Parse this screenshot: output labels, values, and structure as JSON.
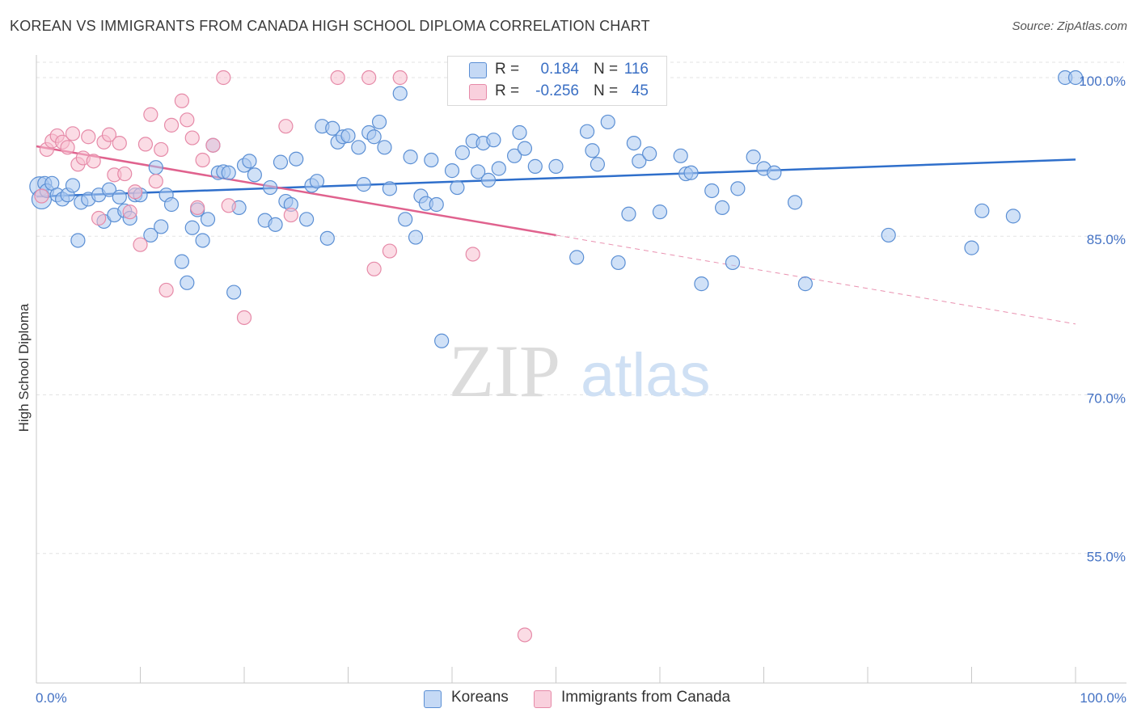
{
  "title": "KOREAN VS IMMIGRANTS FROM CANADA HIGH SCHOOL DIPLOMA CORRELATION CHART",
  "source": "Source: ZipAtlas.com",
  "watermark": {
    "zip": "ZIP",
    "atlas": "atlas"
  },
  "colors": {
    "blue_fill": "#aac8f0",
    "blue_stroke": "#5b8fd4",
    "blue_line": "#2f6fcb",
    "pink_fill": "#f7bfd0",
    "pink_stroke": "#e68aa8",
    "pink_line": "#e0628e",
    "grid": "#e3e3e3",
    "tick_text": "#4472c4"
  },
  "legend": {
    "rows": [
      {
        "r_label": "R =",
        "r_value": "0.184",
        "n_label": "N =",
        "n_value": "116"
      },
      {
        "r_label": "R =",
        "r_value": "-0.256",
        "n_label": "N =",
        "n_value": "45"
      }
    ]
  },
  "bottom_legend": {
    "koreans": "Koreans",
    "canada": "Immigrants from Canada"
  },
  "chart_data": {
    "type": "scatter",
    "ylabel": "High School Diploma",
    "xlim": [
      0,
      100
    ],
    "ylim": [
      0.4275,
      1.0275
    ],
    "x_tick_labels": [
      "0.0%",
      "100.0%"
    ],
    "y_ticks": [
      {
        "value": 1.0,
        "label": "100.0%"
      },
      {
        "value": 0.85,
        "label": "85.0%"
      },
      {
        "value": 0.7,
        "label": "70.0%"
      },
      {
        "value": 0.55,
        "label": "55.0%"
      }
    ],
    "series": [
      {
        "name": "Koreans",
        "trend": {
          "x0": 0,
          "y0": 0.8875,
          "x1": 100,
          "y1": 0.9225,
          "dashed_from": null
        },
        "points": [
          [
            0.3,
            0.897
          ],
          [
            0.5,
            0.885
          ],
          [
            0.8,
            0.9
          ],
          [
            1.0,
            0.893
          ],
          [
            1.5,
            0.9
          ],
          [
            2,
            0.889
          ],
          [
            2.5,
            0.885
          ],
          [
            3,
            0.889
          ],
          [
            3.5,
            0.898
          ],
          [
            4,
            0.846
          ],
          [
            4.3,
            0.882
          ],
          [
            5,
            0.885
          ],
          [
            6,
            0.889
          ],
          [
            6.5,
            0.864
          ],
          [
            7,
            0.894
          ],
          [
            7.5,
            0.87
          ],
          [
            8,
            0.887
          ],
          [
            8.5,
            0.874
          ],
          [
            9,
            0.867
          ],
          [
            9.5,
            0.889
          ],
          [
            10,
            0.889
          ],
          [
            11,
            0.851
          ],
          [
            11.5,
            0.915
          ],
          [
            12,
            0.859
          ],
          [
            12.5,
            0.889
          ],
          [
            13,
            0.88
          ],
          [
            14,
            0.826
          ],
          [
            14.5,
            0.806
          ],
          [
            15,
            0.858
          ],
          [
            15.5,
            0.875
          ],
          [
            16,
            0.846
          ],
          [
            16.5,
            0.866
          ],
          [
            17,
            0.936
          ],
          [
            17.5,
            0.91
          ],
          [
            18,
            0.911
          ],
          [
            18.5,
            0.91
          ],
          [
            19,
            0.797
          ],
          [
            19.5,
            0.877
          ],
          [
            20,
            0.917
          ],
          [
            20.5,
            0.921
          ],
          [
            21,
            0.908
          ],
          [
            22,
            0.865
          ],
          [
            22.5,
            0.896
          ],
          [
            23,
            0.861
          ],
          [
            23.5,
            0.92
          ],
          [
            24,
            0.883
          ],
          [
            24.5,
            0.88
          ],
          [
            25,
            0.923
          ],
          [
            26,
            0.866
          ],
          [
            26.5,
            0.898
          ],
          [
            27,
            0.902
          ],
          [
            27.5,
            0.954
          ],
          [
            28,
            0.848
          ],
          [
            28.5,
            0.952
          ],
          [
            29,
            0.939
          ],
          [
            29.5,
            0.944
          ],
          [
            30,
            0.945
          ],
          [
            31,
            0.934
          ],
          [
            31.5,
            0.899
          ],
          [
            32,
            0.948
          ],
          [
            32.5,
            0.944
          ],
          [
            33,
            0.958
          ],
          [
            33.5,
            0.934
          ],
          [
            34,
            0.895
          ],
          [
            35,
            0.985
          ],
          [
            35.5,
            0.866
          ],
          [
            36,
            0.925
          ],
          [
            36.5,
            0.849
          ],
          [
            37,
            0.888
          ],
          [
            37.5,
            0.881
          ],
          [
            38,
            0.922
          ],
          [
            38.5,
            0.88
          ],
          [
            39,
            0.751
          ],
          [
            40,
            0.912
          ],
          [
            40.5,
            0.896
          ],
          [
            41,
            0.929
          ],
          [
            42,
            0.94
          ],
          [
            42.5,
            0.911
          ],
          [
            43,
            0.938
          ],
          [
            43.5,
            0.903
          ],
          [
            44,
            0.941
          ],
          [
            44.5,
            0.914
          ],
          [
            45,
            1.0
          ],
          [
            46,
            0.926
          ],
          [
            46.5,
            0.948
          ],
          [
            47,
            0.933
          ],
          [
            48,
            0.916
          ],
          [
            50,
            0.916
          ],
          [
            52,
            0.83
          ],
          [
            53,
            0.949
          ],
          [
            53.5,
            0.931
          ],
          [
            54,
            0.918
          ],
          [
            55,
            0.958
          ],
          [
            56,
            0.825
          ],
          [
            57,
            0.871
          ],
          [
            57.5,
            0.938
          ],
          [
            58,
            0.921
          ],
          [
            59,
            0.928
          ],
          [
            60,
            0.873
          ],
          [
            62,
            0.926
          ],
          [
            62.5,
            0.909
          ],
          [
            63,
            0.91
          ],
          [
            64,
            0.805
          ],
          [
            65,
            0.893
          ],
          [
            66,
            0.877
          ],
          [
            67,
            0.825
          ],
          [
            67.5,
            0.895
          ],
          [
            69,
            0.925
          ],
          [
            70,
            0.914
          ],
          [
            71,
            0.91
          ],
          [
            73,
            0.882
          ],
          [
            74,
            0.805
          ],
          [
            82,
            0.851
          ],
          [
            90,
            0.839
          ],
          [
            91,
            0.874
          ],
          [
            94,
            0.869
          ],
          [
            99,
            1.0
          ],
          [
            100,
            1.0
          ]
        ]
      },
      {
        "name": "Immigrants from Canada",
        "trend": {
          "x0": 0,
          "y0": 0.935,
          "x1": 100,
          "y1": 0.767,
          "dashed_from": 50
        },
        "points": [
          [
            0.5,
            0.888
          ],
          [
            1.0,
            0.932
          ],
          [
            1.5,
            0.94
          ],
          [
            2,
            0.945
          ],
          [
            2.5,
            0.939
          ],
          [
            3,
            0.934
          ],
          [
            3.5,
            0.947
          ],
          [
            4,
            0.918
          ],
          [
            4.5,
            0.924
          ],
          [
            5,
            0.944
          ],
          [
            5.5,
            0.921
          ],
          [
            6,
            0.867
          ],
          [
            6.5,
            0.939
          ],
          [
            7,
            0.946
          ],
          [
            7.5,
            0.908
          ],
          [
            8,
            0.938
          ],
          [
            8.5,
            0.909
          ],
          [
            9,
            0.873
          ],
          [
            9.5,
            0.892
          ],
          [
            10,
            0.842
          ],
          [
            10.5,
            0.937
          ],
          [
            11,
            0.965
          ],
          [
            11.5,
            0.902
          ],
          [
            12,
            0.932
          ],
          [
            12.5,
            0.799
          ],
          [
            13,
            0.955
          ],
          [
            14,
            0.978
          ],
          [
            14.5,
            0.96
          ],
          [
            15,
            0.943
          ],
          [
            15.5,
            0.877
          ],
          [
            16,
            0.922
          ],
          [
            17,
            0.936
          ],
          [
            18,
            1.0
          ],
          [
            18.5,
            0.879
          ],
          [
            20,
            0.773
          ],
          [
            24,
            0.954
          ],
          [
            24.5,
            0.87
          ],
          [
            29,
            1.0
          ],
          [
            32,
            1.0
          ],
          [
            32.5,
            0.819
          ],
          [
            34,
            0.836
          ],
          [
            35,
            1.0
          ],
          [
            40.5,
            1.0
          ],
          [
            42,
            0.833
          ],
          [
            47,
            0.473
          ]
        ]
      }
    ]
  }
}
